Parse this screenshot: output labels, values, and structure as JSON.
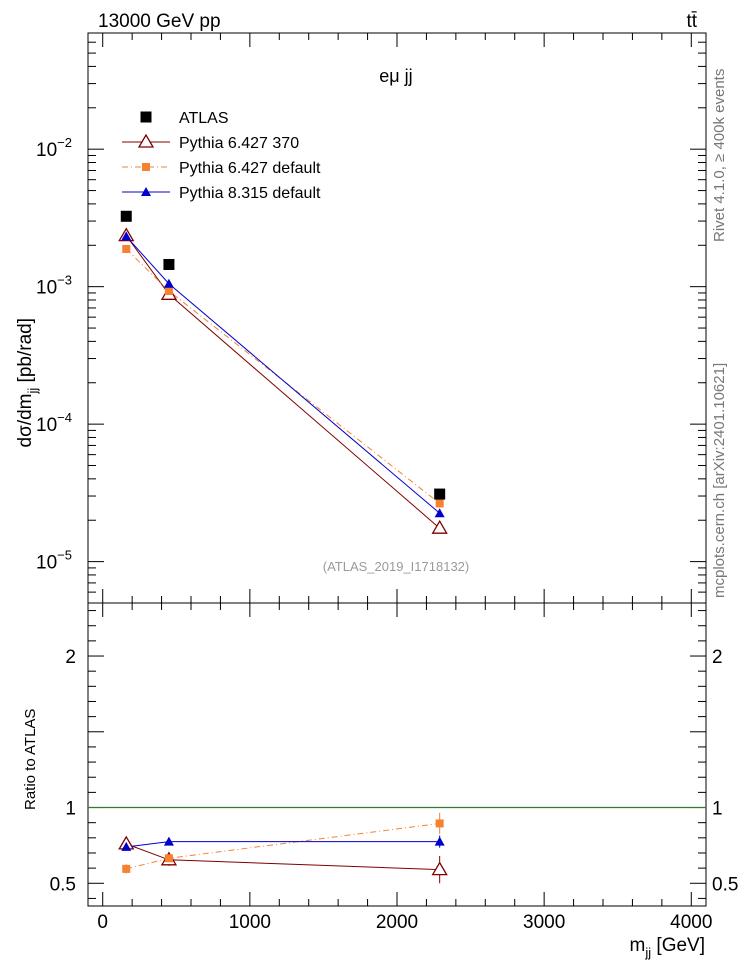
{
  "header": {
    "energy_label": "13000 GeV pp",
    "process_label": "tt̄"
  },
  "side_labels": {
    "rivet": "Rivet 4.1.0, ≥ 400k events",
    "mcplots": "mcplots.cern.ch [arXiv:2401.10621]"
  },
  "chart_data": [
    {
      "panel": "main",
      "type": "scatter",
      "title": "eμ jj",
      "watermark": "(ATLAS_2019_I1718132)",
      "ylabel": "dσ/dm_jj [pb/rad]",
      "yscale": "log",
      "ylim": [
        5e-06,
        0.07
      ],
      "xlim": [
        -100,
        4100
      ],
      "yticks": [
        {
          "value": 0.01,
          "base": "10",
          "exp": "−2"
        },
        {
          "value": 0.001,
          "base": "10",
          "exp": "−3"
        },
        {
          "value": 0.0001,
          "base": "10",
          "exp": "−4"
        },
        {
          "value": 1e-05,
          "base": "10",
          "exp": "−5"
        }
      ],
      "legend_position": "top-left",
      "series": [
        {
          "name": "ATLAS",
          "marker": "square",
          "color": "#000000",
          "line": "none",
          "x": [
            160,
            450,
            2290
          ],
          "y": [
            0.00325,
            0.00145,
            3.1e-05
          ]
        },
        {
          "name": "Pythia 6.427 370",
          "marker": "triangle-open",
          "color": "#800000",
          "line": "solid",
          "x": [
            160,
            450,
            2290
          ],
          "y": [
            0.00235,
            0.00088,
            1.75e-05
          ]
        },
        {
          "name": "Pythia 6.427 default",
          "marker": "square-small",
          "color": "#f58231",
          "line": "dashdot",
          "x": [
            160,
            450,
            2290
          ],
          "y": [
            0.00188,
            0.00093,
            2.65e-05
          ]
        },
        {
          "name": "Pythia 8.315 default",
          "marker": "triangle",
          "color": "#0000cc",
          "line": "solid",
          "x": [
            160,
            450,
            2290
          ],
          "y": [
            0.00232,
            0.00105,
            2.25e-05
          ]
        }
      ]
    },
    {
      "panel": "ratio",
      "type": "scatter",
      "ylabel": "Ratio to ATLAS",
      "xlabel": "m_jj [GeV]",
      "ylim": [
        0.35,
        2.35
      ],
      "xlim": [
        -100,
        4100
      ],
      "yticks": [
        {
          "value": 2,
          "label": "2"
        },
        {
          "value": 1,
          "label": "1"
        },
        {
          "value": 0.5,
          "label": "0.5"
        }
      ],
      "xticks": [
        {
          "value": 0,
          "label": "0"
        },
        {
          "value": 1000,
          "label": "1000"
        },
        {
          "value": 2000,
          "label": "2000"
        },
        {
          "value": 3000,
          "label": "3000"
        },
        {
          "value": 4000,
          "label": "4000"
        }
      ],
      "reference_line": 1.0,
      "series": [
        {
          "name": "Pythia 6.427 370",
          "color": "#800000",
          "marker": "triangle-open",
          "x": [
            160,
            450,
            2290
          ],
          "y": [
            0.76,
            0.655,
            0.59
          ],
          "err": [
            0.03,
            0.04,
            0.09
          ]
        },
        {
          "name": "Pythia 6.427 default",
          "color": "#f58231",
          "marker": "square-small",
          "x": [
            160,
            450,
            2290
          ],
          "y": [
            0.595,
            0.665,
            0.895
          ],
          "err": [
            0.03,
            0.035,
            0.07
          ]
        },
        {
          "name": "Pythia 8.315 default",
          "color": "#0000cc",
          "marker": "triangle",
          "x": [
            160,
            450,
            2290
          ],
          "y": [
            0.74,
            0.775,
            0.775
          ],
          "err": [
            0.015,
            0.015,
            0.04
          ]
        }
      ]
    }
  ]
}
